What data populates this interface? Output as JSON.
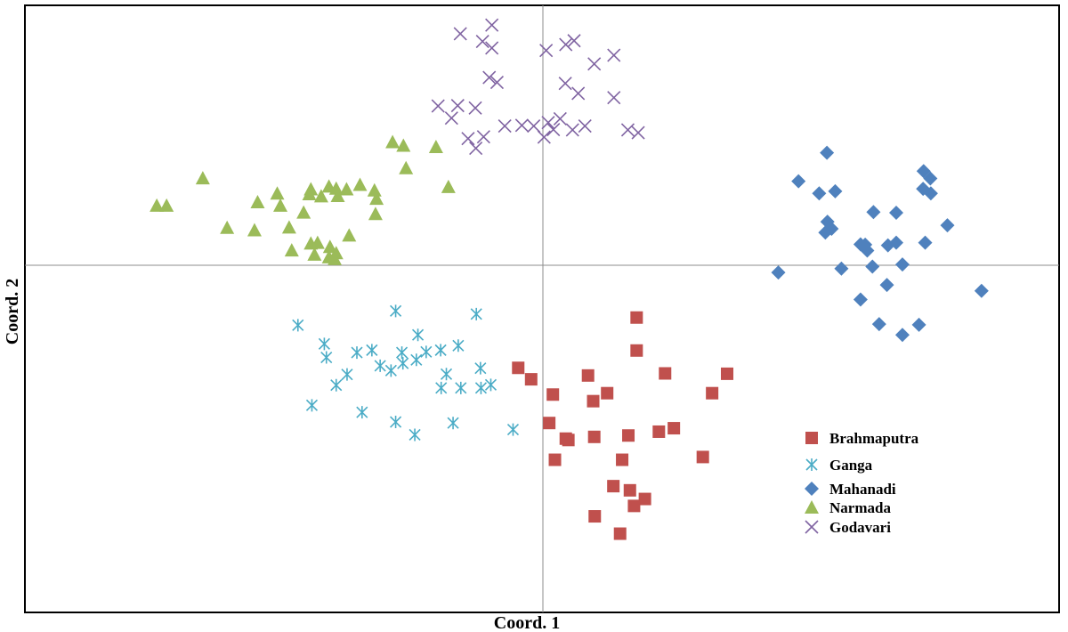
{
  "chart_data": {
    "type": "scatter",
    "title": "",
    "xlabel": "Coord. 1",
    "ylabel": "Coord. 2",
    "xlim": [
      -1.0,
      1.0
    ],
    "ylim": [
      -1.0,
      0.75
    ],
    "grid": false,
    "legend_position": "bottom-right",
    "series": [
      {
        "name": "Brahmaputra",
        "marker": "square",
        "color": "#c0504d",
        "points": [
          [
            0.183,
            -0.15
          ],
          [
            0.183,
            -0.245
          ],
          [
            -0.046,
            -0.295
          ],
          [
            -0.021,
            -0.328
          ],
          [
            0.089,
            -0.317
          ],
          [
            0.238,
            -0.311
          ],
          [
            0.358,
            -0.312
          ],
          [
            0.329,
            -0.368
          ],
          [
            0.021,
            -0.372
          ],
          [
            0.099,
            -0.391
          ],
          [
            0.126,
            -0.368
          ],
          [
            0.255,
            -0.469
          ],
          [
            0.226,
            -0.479
          ],
          [
            0.167,
            -0.49
          ],
          [
            0.101,
            -0.494
          ],
          [
            0.051,
            -0.503
          ],
          [
            0.014,
            -0.454
          ],
          [
            0.311,
            -0.552
          ],
          [
            0.155,
            -0.56
          ],
          [
            0.025,
            -0.56
          ],
          [
            0.138,
            -0.636
          ],
          [
            0.17,
            -0.648
          ],
          [
            0.199,
            -0.673
          ],
          [
            0.178,
            -0.693
          ],
          [
            0.102,
            -0.723
          ],
          [
            0.151,
            -0.773
          ],
          [
            0.046,
            -0.499
          ]
        ]
      },
      {
        "name": "Ganga",
        "marker": "asterisk",
        "color": "#4bacc6",
        "points": [
          [
            -0.472,
            -0.172
          ],
          [
            -0.283,
            -0.131
          ],
          [
            -0.127,
            -0.14
          ],
          [
            -0.421,
            -0.226
          ],
          [
            -0.24,
            -0.2
          ],
          [
            -0.329,
            -0.244
          ],
          [
            -0.224,
            -0.249
          ],
          [
            -0.271,
            -0.251
          ],
          [
            -0.358,
            -0.251
          ],
          [
            -0.269,
            -0.282
          ],
          [
            -0.243,
            -0.272
          ],
          [
            -0.417,
            -0.265
          ],
          [
            -0.196,
            -0.244
          ],
          [
            -0.162,
            -0.231
          ],
          [
            -0.313,
            -0.289
          ],
          [
            -0.292,
            -0.303
          ],
          [
            -0.185,
            -0.313
          ],
          [
            -0.119,
            -0.296
          ],
          [
            -0.377,
            -0.314
          ],
          [
            -0.398,
            -0.345
          ],
          [
            -0.195,
            -0.353
          ],
          [
            -0.157,
            -0.353
          ],
          [
            -0.118,
            -0.353
          ],
          [
            -0.099,
            -0.344
          ],
          [
            -0.445,
            -0.403
          ],
          [
            -0.348,
            -0.423
          ],
          [
            -0.283,
            -0.451
          ],
          [
            -0.172,
            -0.454
          ],
          [
            -0.056,
            -0.473
          ],
          [
            -0.246,
            -0.488
          ]
        ]
      },
      {
        "name": "Mahanadi",
        "marker": "diamond",
        "color": "#4f81bd",
        "points": [
          [
            0.551,
            0.325
          ],
          [
            0.496,
            0.243
          ],
          [
            0.536,
            0.208
          ],
          [
            0.567,
            0.214
          ],
          [
            0.738,
            0.272
          ],
          [
            0.751,
            0.251
          ],
          [
            0.737,
            0.221
          ],
          [
            0.752,
            0.208
          ],
          [
            0.641,
            0.154
          ],
          [
            0.685,
            0.152
          ],
          [
            0.552,
            0.126
          ],
          [
            0.56,
            0.106
          ],
          [
            0.548,
            0.095
          ],
          [
            0.784,
            0.116
          ],
          [
            0.669,
            0.058
          ],
          [
            0.625,
            0.06
          ],
          [
            0.685,
            0.066
          ],
          [
            0.741,
            0.066
          ],
          [
            0.629,
            0.043
          ],
          [
            0.616,
            0.061
          ],
          [
            0.457,
            -0.02
          ],
          [
            0.579,
            -0.009
          ],
          [
            0.639,
            -0.003
          ],
          [
            0.697,
            0.003
          ],
          [
            0.667,
            -0.056
          ],
          [
            0.85,
            -0.073
          ],
          [
            0.616,
            -0.098
          ],
          [
            0.652,
            -0.169
          ],
          [
            0.729,
            -0.171
          ],
          [
            0.697,
            -0.2
          ]
        ]
      },
      {
        "name": "Narmada",
        "marker": "triangle",
        "color": "#9bbb59",
        "points": [
          [
            -0.289,
            0.356
          ],
          [
            -0.268,
            0.346
          ],
          [
            -0.205,
            0.342
          ],
          [
            -0.263,
            0.281
          ],
          [
            -0.656,
            0.252
          ],
          [
            -0.512,
            0.208
          ],
          [
            -0.45,
            0.206
          ],
          [
            -0.447,
            0.22
          ],
          [
            -0.412,
            0.228
          ],
          [
            -0.398,
            0.222
          ],
          [
            -0.427,
            0.2
          ],
          [
            -0.395,
            0.201
          ],
          [
            -0.378,
            0.22
          ],
          [
            -0.352,
            0.233
          ],
          [
            -0.324,
            0.217
          ],
          [
            -0.32,
            0.193
          ],
          [
            -0.181,
            0.227
          ],
          [
            -0.322,
            0.149
          ],
          [
            -0.55,
            0.183
          ],
          [
            -0.506,
            0.173
          ],
          [
            -0.745,
            0.173
          ],
          [
            -0.726,
            0.173
          ],
          [
            -0.609,
            0.109
          ],
          [
            -0.556,
            0.102
          ],
          [
            -0.489,
            0.11
          ],
          [
            -0.461,
            0.153
          ],
          [
            -0.373,
            0.087
          ],
          [
            -0.447,
            0.064
          ],
          [
            -0.41,
            0.054
          ],
          [
            -0.484,
            0.044
          ],
          [
            -0.44,
            0.032
          ],
          [
            -0.398,
            0.036
          ],
          [
            -0.401,
            0.019
          ],
          [
            -0.434,
            0.066
          ],
          [
            -0.412,
            0.024
          ]
        ]
      },
      {
        "name": "Godavari",
        "marker": "x",
        "color": "#8064a2",
        "points": [
          [
            -0.158,
            0.668
          ],
          [
            -0.097,
            0.693
          ],
          [
            -0.115,
            0.646
          ],
          [
            -0.097,
            0.627
          ],
          [
            0.008,
            0.62
          ],
          [
            0.062,
            0.648
          ],
          [
            0.046,
            0.637
          ],
          [
            0.139,
            0.606
          ],
          [
            0.101,
            0.581
          ],
          [
            0.045,
            0.525
          ],
          [
            0.07,
            0.496
          ],
          [
            0.139,
            0.484
          ],
          [
            -0.102,
            0.542
          ],
          [
            -0.087,
            0.528
          ],
          [
            -0.163,
            0.461
          ],
          [
            -0.129,
            0.454
          ],
          [
            -0.201,
            0.46
          ],
          [
            -0.175,
            0.425
          ],
          [
            -0.072,
            0.402
          ],
          [
            -0.016,
            0.402
          ],
          [
            -0.039,
            0.404
          ],
          [
            0.035,
            0.423
          ],
          [
            0.022,
            0.392
          ],
          [
            0.083,
            0.402
          ],
          [
            0.166,
            0.391
          ],
          [
            0.186,
            0.383
          ],
          [
            0.012,
            0.412
          ],
          [
            -0.128,
            0.338
          ],
          [
            -0.113,
            0.371
          ],
          [
            -0.143,
            0.366
          ],
          [
            0.059,
            0.391
          ],
          [
            0.004,
            0.37
          ]
        ]
      }
    ]
  }
}
